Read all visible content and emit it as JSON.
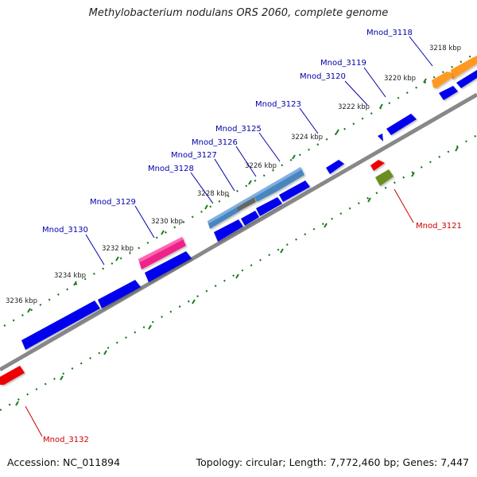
{
  "title": "Methylobacterium nodulans ORS 2060, complete genome",
  "accession_label": "Accession: NC_011894",
  "summary_label": "Topology: circular; Length: 7,772,460 bp; Genes: 7,447",
  "colors": {
    "forward_gene": "#0000ee",
    "reverse_gene": "#ee0000",
    "pink_gene": "#ee2288",
    "light_blue_gene": "#4a86c0",
    "gray_gene": "#666666",
    "orange_gene": "#ff9922",
    "olive_gene": "#6b8e23",
    "backbone": "#888888",
    "tick": "#1a7a1a",
    "forward_label": "#0000aa",
    "reverse_label": "#cc0000"
  },
  "kbp_ticks": [
    {
      "kbp": 3218,
      "label": "3218 kbp"
    },
    {
      "kbp": 3220,
      "label": "3220 kbp"
    },
    {
      "kbp": 3222,
      "label": "3222 kbp"
    },
    {
      "kbp": 3224,
      "label": "3224 kbp"
    },
    {
      "kbp": 3226,
      "label": "3226 kbp"
    },
    {
      "kbp": 3228,
      "label": "3228 kbp"
    },
    {
      "kbp": 3230,
      "label": "3230 kbp"
    },
    {
      "kbp": 3232,
      "label": "3232 kbp"
    },
    {
      "kbp": 3234,
      "label": "3234 kbp"
    },
    {
      "kbp": 3236,
      "label": "3236 kbp"
    }
  ],
  "gene_labels": [
    {
      "name": "Mnod_3118",
      "strand": "forward"
    },
    {
      "name": "Mnod_3119",
      "strand": "forward"
    },
    {
      "name": "Mnod_3120",
      "strand": "forward"
    },
    {
      "name": "Mnod_3121",
      "strand": "reverse"
    },
    {
      "name": "Mnod_3123",
      "strand": "forward"
    },
    {
      "name": "Mnod_3125",
      "strand": "forward"
    },
    {
      "name": "Mnod_3126",
      "strand": "forward"
    },
    {
      "name": "Mnod_3127",
      "strand": "forward"
    },
    {
      "name": "Mnod_3128",
      "strand": "forward"
    },
    {
      "name": "Mnod_3129",
      "strand": "forward"
    },
    {
      "name": "Mnod_3130",
      "strand": "forward"
    },
    {
      "name": "Mnod_3132",
      "strand": "reverse"
    }
  ]
}
